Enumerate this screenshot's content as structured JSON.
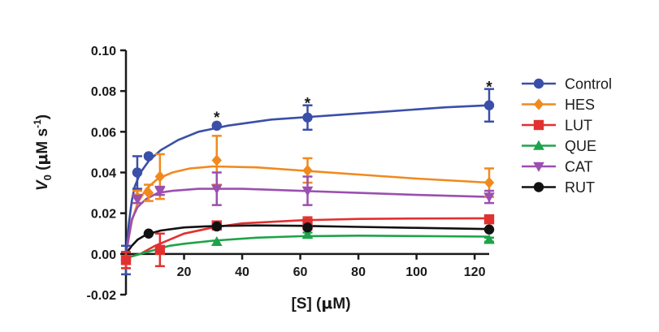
{
  "chart_data": {
    "type": "scatter",
    "xlabel_parts": {
      "main": "[S]",
      "unit_open": " (",
      "mu": "μ",
      "unit_rest": "M)"
    },
    "ylabel_parts": {
      "v": "V",
      "sub": "0",
      "unit_open": " (",
      "mu": "μ",
      "unit_mid": "M s",
      "sup": "-1",
      "unit_close": ")"
    },
    "xlim": [
      0,
      125
    ],
    "ylim": [
      -0.02,
      0.1
    ],
    "xticks": [
      {
        "value": 20,
        "label": "20"
      },
      {
        "value": 40,
        "label": "40"
      },
      {
        "value": 60,
        "label": "60"
      },
      {
        "value": 80,
        "label": "80"
      },
      {
        "value": 100,
        "label": "100"
      },
      {
        "value": 120,
        "label": "120"
      }
    ],
    "yticks": [
      {
        "value": -0.02,
        "label": "-0.02"
      },
      {
        "value": 0.0,
        "label": "0.00"
      },
      {
        "value": 0.02,
        "label": "0.02"
      },
      {
        "value": 0.04,
        "label": "0.04"
      },
      {
        "value": 0.06,
        "label": "0.06"
      },
      {
        "value": 0.08,
        "label": "0.08"
      },
      {
        "value": 0.1,
        "label": "0.10"
      }
    ],
    "legend_position": "right",
    "grid": false,
    "series": [
      {
        "name": "Control",
        "color": "#3a4fa8",
        "marker": "circle",
        "x": [
          0,
          3.9,
          7.8,
          31.25,
          62.5,
          125
        ],
        "y": [
          -0.003,
          0.04,
          0.048,
          0.063,
          0.067,
          0.073
        ],
        "err": [
          0.007,
          0.008,
          0.0,
          0.0,
          0.006,
          0.008
        ],
        "fit": [
          [
            0,
            0.0
          ],
          [
            1,
            0.015
          ],
          [
            2,
            0.026
          ],
          [
            3,
            0.033
          ],
          [
            5,
            0.04
          ],
          [
            8,
            0.046
          ],
          [
            12,
            0.051
          ],
          [
            18,
            0.056
          ],
          [
            25,
            0.06
          ],
          [
            35,
            0.063
          ],
          [
            50,
            0.066
          ],
          [
            70,
            0.068
          ],
          [
            90,
            0.07
          ],
          [
            110,
            0.072
          ],
          [
            125,
            0.073
          ]
        ]
      },
      {
        "name": "HES",
        "color": "#f08a1e",
        "marker": "diamond",
        "x": [
          0,
          3.9,
          7.8,
          11.7,
          31.25,
          62.5,
          125
        ],
        "y": [
          -0.003,
          0.028,
          0.03,
          0.038,
          0.046,
          0.041,
          0.035
        ],
        "err": [
          0.004,
          0.003,
          0.004,
          0.011,
          0.012,
          0.006,
          0.007
        ],
        "fit": [
          [
            0,
            0.0
          ],
          [
            2,
            0.016
          ],
          [
            4,
            0.025
          ],
          [
            7,
            0.032
          ],
          [
            11,
            0.037
          ],
          [
            16,
            0.04
          ],
          [
            22,
            0.042
          ],
          [
            30,
            0.043
          ],
          [
            45,
            0.0425
          ],
          [
            60,
            0.041
          ],
          [
            80,
            0.039
          ],
          [
            100,
            0.037
          ],
          [
            125,
            0.035
          ]
        ]
      },
      {
        "name": "LUT",
        "color": "#e23030",
        "marker": "square",
        "x": [
          0,
          11.7,
          31.25,
          62.5,
          125
        ],
        "y": [
          -0.003,
          0.002,
          0.014,
          0.015,
          0.017
        ],
        "err": [
          0.004,
          0.008,
          0.002,
          0.003,
          0.001
        ],
        "fit": [
          [
            0,
            -0.002
          ],
          [
            5,
            0.0
          ],
          [
            10,
            0.004
          ],
          [
            15,
            0.007
          ],
          [
            20,
            0.01
          ],
          [
            30,
            0.013
          ],
          [
            40,
            0.015
          ],
          [
            60,
            0.0165
          ],
          [
            80,
            0.0172
          ],
          [
            100,
            0.0174
          ],
          [
            125,
            0.0175
          ]
        ]
      },
      {
        "name": "QUE",
        "color": "#1ea34a",
        "marker": "triangle-up",
        "x": [
          31.25,
          62.5,
          125
        ],
        "y": [
          0.006,
          0.0095,
          0.007
        ],
        "err": [
          0.0,
          0.001,
          0.001
        ],
        "fit": [
          [
            0,
            -0.002
          ],
          [
            5,
            0.0
          ],
          [
            10,
            0.002
          ],
          [
            15,
            0.004
          ],
          [
            20,
            0.005
          ],
          [
            30,
            0.0065
          ],
          [
            45,
            0.008
          ],
          [
            60,
            0.0087
          ],
          [
            80,
            0.009
          ],
          [
            100,
            0.0088
          ],
          [
            125,
            0.0085
          ]
        ]
      },
      {
        "name": "CAT",
        "color": "#9b4fb0",
        "marker": "triangle-down",
        "x": [
          3.9,
          11.7,
          31.25,
          62.5,
          125
        ],
        "y": [
          0.027,
          0.031,
          0.032,
          0.031,
          0.028
        ],
        "err": [
          0.002,
          0.002,
          0.008,
          0.007,
          0.003
        ],
        "fit": [
          [
            0,
            0.0
          ],
          [
            2,
            0.017
          ],
          [
            4,
            0.023
          ],
          [
            7,
            0.027
          ],
          [
            11,
            0.03
          ],
          [
            16,
            0.031
          ],
          [
            25,
            0.032
          ],
          [
            40,
            0.032
          ],
          [
            60,
            0.031
          ],
          [
            80,
            0.03
          ],
          [
            100,
            0.029
          ],
          [
            125,
            0.028
          ]
        ]
      },
      {
        "name": "RUT",
        "color": "#111111",
        "marker": "circle",
        "x": [
          7.8,
          31.25,
          62.5,
          125
        ],
        "y": [
          0.01,
          0.0135,
          0.013,
          0.012
        ],
        "err": [
          0.0,
          0.0,
          0.0,
          0.0
        ],
        "fit": [
          [
            0,
            0.0
          ],
          [
            2,
            0.004
          ],
          [
            4,
            0.007
          ],
          [
            7,
            0.0095
          ],
          [
            12,
            0.0115
          ],
          [
            20,
            0.013
          ],
          [
            30,
            0.0137
          ],
          [
            45,
            0.014
          ],
          [
            60,
            0.0138
          ],
          [
            80,
            0.0133
          ],
          [
            100,
            0.0128
          ],
          [
            125,
            0.0122
          ]
        ]
      }
    ],
    "annotations": [
      {
        "x": 31.25,
        "y": 0.0685,
        "text": "*"
      },
      {
        "x": 62.5,
        "y": 0.0755,
        "text": "*"
      },
      {
        "x": 125,
        "y": 0.0835,
        "text": "*"
      }
    ]
  }
}
